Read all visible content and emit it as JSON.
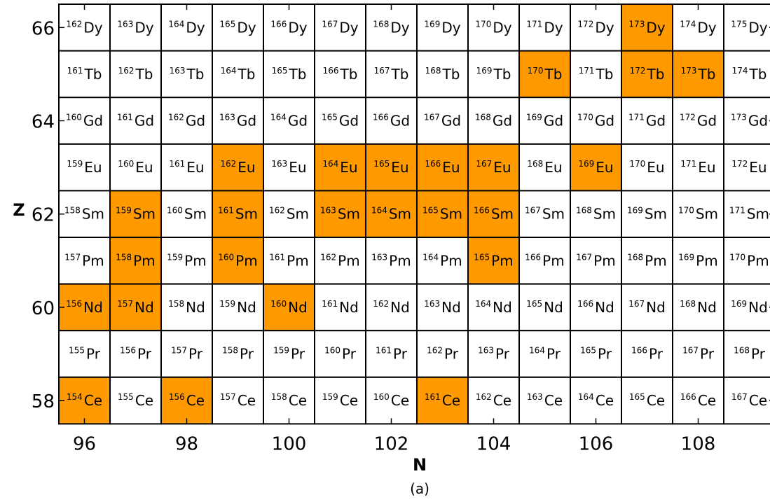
{
  "chart_data": {
    "type": "heatmap",
    "xlabel": "N",
    "ylabel": "Z",
    "caption": "(a)",
    "x_ticks": [
      96,
      98,
      100,
      102,
      104,
      106,
      108
    ],
    "y_ticks": [
      58,
      60,
      62,
      64,
      66
    ],
    "xlim": [
      96,
      109
    ],
    "ylim": [
      58,
      66
    ],
    "colors": {
      "highlight": "#ff9900",
      "default": "#ffffff",
      "border": "#000000"
    },
    "rows": [
      {
        "z": 66,
        "symbol": "Dy",
        "highlighted_n": [
          107
        ]
      },
      {
        "z": 65,
        "symbol": "Tb",
        "highlighted_n": [
          105,
          107,
          108
        ]
      },
      {
        "z": 64,
        "symbol": "Gd",
        "highlighted_n": []
      },
      {
        "z": 63,
        "symbol": "Eu",
        "highlighted_n": [
          99,
          101,
          102,
          103,
          104,
          106
        ]
      },
      {
        "z": 62,
        "symbol": "Sm",
        "highlighted_n": [
          97,
          99,
          101,
          102,
          103,
          104
        ]
      },
      {
        "z": 61,
        "symbol": "Pm",
        "highlighted_n": [
          97,
          99,
          104
        ]
      },
      {
        "z": 60,
        "symbol": "Nd",
        "highlighted_n": [
          96,
          97,
          100
        ]
      },
      {
        "z": 59,
        "symbol": "Pr",
        "highlighted_n": []
      },
      {
        "z": 58,
        "symbol": "Ce",
        "highlighted_n": [
          96,
          98,
          103
        ]
      }
    ]
  }
}
